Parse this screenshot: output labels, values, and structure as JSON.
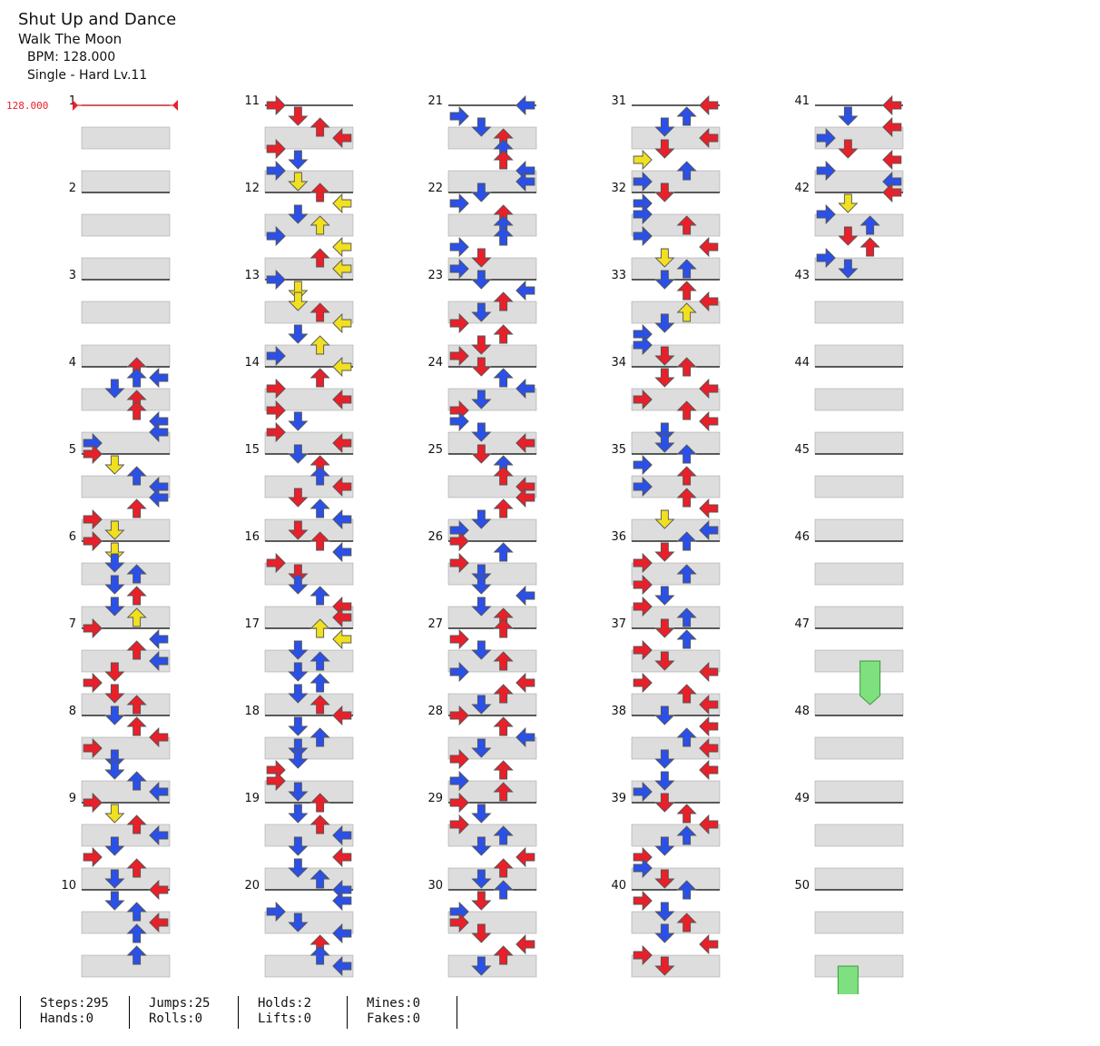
{
  "song": {
    "title": "Shut Up and Dance",
    "artist": "Walk The Moon",
    "bpm_label": "BPM: 128.000",
    "difficulty_label": "Single - Hard  Lv.11"
  },
  "bpm_marker": "128.000",
  "measures_per_column": 10,
  "total_measures": 50,
  "colors": {
    "quarter": "#e8202a",
    "eighth": "#2a50e8",
    "sixteenth": "#f0e020",
    "hold": "#7fe07f",
    "lane_bg": "#dddddd",
    "measure_line": "#000000"
  },
  "notes_by_measure": [
    [],
    [],
    [],
    [
      [
        0,
        2,
        "q"
      ],
      [
        0.125,
        2,
        "e"
      ],
      [
        0.125,
        3,
        "e"
      ],
      [
        0.25,
        1,
        "e"
      ],
      [
        0.375,
        2,
        "q"
      ],
      [
        0.5,
        2,
        "q"
      ],
      [
        0.625,
        3,
        "e"
      ],
      [
        0.75,
        3,
        "e"
      ],
      [
        0.875,
        0,
        "e"
      ]
    ],
    [
      [
        0,
        0,
        "q"
      ],
      [
        0.125,
        1,
        "s"
      ],
      [
        0.25,
        2,
        "e"
      ],
      [
        0.375,
        3,
        "e"
      ],
      [
        0.5,
        3,
        "e"
      ],
      [
        0.625,
        2,
        "q"
      ],
      [
        0.75,
        0,
        "q"
      ],
      [
        0.875,
        1,
        "s"
      ]
    ],
    [
      [
        0,
        0,
        "q"
      ],
      [
        0.125,
        1,
        "s"
      ],
      [
        0.25,
        1,
        "e"
      ],
      [
        0.375,
        2,
        "e"
      ],
      [
        0.5,
        1,
        "e"
      ],
      [
        0.625,
        2,
        "q"
      ],
      [
        0.75,
        1,
        "e"
      ],
      [
        0.875,
        2,
        "s"
      ]
    ],
    [
      [
        0,
        0,
        "q"
      ],
      [
        0.125,
        3,
        "e"
      ],
      [
        0.25,
        2,
        "q"
      ],
      [
        0.375,
        3,
        "e"
      ],
      [
        0.5,
        1,
        "q"
      ],
      [
        0.625,
        0,
        "q"
      ],
      [
        0.75,
        1,
        "q"
      ],
      [
        0.875,
        2,
        "q"
      ]
    ],
    [
      [
        0,
        1,
        "e"
      ],
      [
        0.125,
        2,
        "q"
      ],
      [
        0.25,
        3,
        "q"
      ],
      [
        0.375,
        0,
        "q"
      ],
      [
        0.5,
        1,
        "e"
      ],
      [
        0.625,
        1,
        "e"
      ],
      [
        0.75,
        2,
        "e"
      ],
      [
        0.875,
        3,
        "e"
      ]
    ],
    [
      [
        0,
        0,
        "q"
      ],
      [
        0.125,
        1,
        "s"
      ],
      [
        0.25,
        2,
        "q"
      ],
      [
        0.375,
        3,
        "e"
      ],
      [
        0.5,
        1,
        "e"
      ],
      [
        0.625,
        0,
        "q"
      ],
      [
        0.75,
        2,
        "q"
      ],
      [
        0.875,
        1,
        "e"
      ]
    ],
    [
      [
        0,
        3,
        "q"
      ],
      [
        0.125,
        1,
        "e"
      ],
      [
        0.25,
        2,
        "e"
      ],
      [
        0.375,
        3,
        "q"
      ],
      [
        0.5,
        2,
        "e"
      ],
      [
        0.75,
        2,
        "e"
      ]
    ],
    [
      [
        0,
        0,
        "q"
      ],
      [
        0.125,
        1,
        "q"
      ],
      [
        0.25,
        2,
        "q"
      ],
      [
        0.375,
        3,
        "q"
      ],
      [
        0.5,
        0,
        "q"
      ],
      [
        0.625,
        1,
        "e"
      ],
      [
        0.75,
        0,
        "e"
      ],
      [
        0.875,
        1,
        "s"
      ]
    ],
    [
      [
        0,
        2,
        "q"
      ],
      [
        0.125,
        3,
        "s"
      ],
      [
        0.25,
        1,
        "e"
      ],
      [
        0.375,
        2,
        "s"
      ],
      [
        0.5,
        0,
        "e"
      ],
      [
        0.625,
        3,
        "s"
      ],
      [
        0.75,
        2,
        "q"
      ],
      [
        0.875,
        3,
        "s"
      ]
    ],
    [
      [
        0,
        0,
        "e"
      ],
      [
        0.125,
        1,
        "s"
      ],
      [
        0.25,
        1,
        "s"
      ],
      [
        0.375,
        2,
        "q"
      ],
      [
        0.5,
        3,
        "s"
      ],
      [
        0.625,
        1,
        "e"
      ],
      [
        0.75,
        2,
        "s"
      ],
      [
        0.875,
        0,
        "e"
      ]
    ],
    [
      [
        0,
        3,
        "s"
      ],
      [
        0.125,
        2,
        "q"
      ],
      [
        0.25,
        0,
        "q"
      ],
      [
        0.375,
        3,
        "q"
      ],
      [
        0.5,
        0,
        "q"
      ],
      [
        0.625,
        1,
        "e"
      ],
      [
        0.75,
        0,
        "q"
      ],
      [
        0.875,
        3,
        "q"
      ]
    ],
    [
      [
        0,
        1,
        "e"
      ],
      [
        0.125,
        2,
        "q"
      ],
      [
        0.25,
        2,
        "e"
      ],
      [
        0.375,
        3,
        "q"
      ],
      [
        0.5,
        1,
        "q"
      ],
      [
        0.625,
        2,
        "e"
      ],
      [
        0.75,
        3,
        "e"
      ],
      [
        0.875,
        1,
        "q"
      ]
    ],
    [
      [
        0,
        2,
        "q"
      ],
      [
        0.125,
        3,
        "e"
      ],
      [
        0.25,
        0,
        "q"
      ],
      [
        0.375,
        1,
        "q"
      ],
      [
        0.5,
        1,
        "e"
      ],
      [
        0.625,
        2,
        "e"
      ],
      [
        0.75,
        3,
        "q"
      ],
      [
        0.875,
        3,
        "q"
      ]
    ],
    [
      [
        0,
        2,
        "s"
      ],
      [
        0.125,
        3,
        "s"
      ],
      [
        0.25,
        1,
        "e"
      ],
      [
        0.375,
        2,
        "e"
      ],
      [
        0.5,
        1,
        "e"
      ],
      [
        0.625,
        2,
        "e"
      ],
      [
        0.75,
        1,
        "e"
      ],
      [
        0.875,
        2,
        "q"
      ]
    ],
    [
      [
        0,
        3,
        "q"
      ],
      [
        0.125,
        1,
        "e"
      ],
      [
        0.25,
        2,
        "e"
      ],
      [
        0.375,
        1,
        "e"
      ],
      [
        0.5,
        1,
        "e"
      ],
      [
        0.625,
        0,
        "q"
      ],
      [
        0.75,
        0,
        "q"
      ],
      [
        0.875,
        1,
        "e"
      ]
    ],
    [
      [
        0,
        2,
        "q"
      ],
      [
        0.125,
        1,
        "e"
      ],
      [
        0.25,
        2,
        "q"
      ],
      [
        0.375,
        3,
        "e"
      ],
      [
        0.5,
        1,
        "e"
      ],
      [
        0.625,
        3,
        "q"
      ],
      [
        0.75,
        1,
        "e"
      ],
      [
        0.875,
        2,
        "e"
      ]
    ],
    [
      [
        0,
        3,
        "e"
      ],
      [
        0.125,
        3,
        "e"
      ],
      [
        0.25,
        0,
        "e"
      ],
      [
        0.375,
        1,
        "e"
      ],
      [
        0.5,
        3,
        "e"
      ],
      [
        0.625,
        2,
        "q"
      ],
      [
        0.75,
        2,
        "e"
      ],
      [
        0.875,
        3,
        "e"
      ]
    ],
    [
      [
        0,
        3,
        "e"
      ],
      [
        0.125,
        0,
        "e"
      ],
      [
        0.25,
        1,
        "e"
      ],
      [
        0.375,
        2,
        "q"
      ],
      [
        0.5,
        2,
        "e"
      ],
      [
        0.625,
        2,
        "q"
      ],
      [
        0.75,
        3,
        "e"
      ],
      [
        0.875,
        3,
        "e"
      ]
    ],
    [
      [
        0,
        1,
        "e"
      ],
      [
        0.125,
        0,
        "e"
      ],
      [
        0.25,
        2,
        "q"
      ],
      [
        0.375,
        2,
        "e"
      ],
      [
        0.5,
        2,
        "e"
      ],
      [
        0.625,
        0,
        "e"
      ],
      [
        0.75,
        1,
        "q"
      ],
      [
        0.875,
        0,
        "e"
      ]
    ],
    [
      [
        0,
        1,
        "e"
      ],
      [
        0.125,
        3,
        "e"
      ],
      [
        0.25,
        2,
        "q"
      ],
      [
        0.375,
        1,
        "e"
      ],
      [
        0.5,
        0,
        "q"
      ],
      [
        0.625,
        2,
        "q"
      ],
      [
        0.75,
        1,
        "q"
      ],
      [
        0.875,
        0,
        "q"
      ]
    ],
    [
      [
        0,
        1,
        "q"
      ],
      [
        0.125,
        2,
        "e"
      ],
      [
        0.25,
        3,
        "e"
      ],
      [
        0.375,
        1,
        "e"
      ],
      [
        0.5,
        0,
        "q"
      ],
      [
        0.625,
        0,
        "e"
      ],
      [
        0.75,
        1,
        "e"
      ],
      [
        0.875,
        3,
        "q"
      ]
    ],
    [
      [
        0,
        1,
        "q"
      ],
      [
        0.125,
        2,
        "e"
      ],
      [
        0.25,
        2,
        "q"
      ],
      [
        0.375,
        3,
        "q"
      ],
      [
        0.5,
        3,
        "q"
      ],
      [
        0.625,
        2,
        "q"
      ],
      [
        0.75,
        1,
        "e"
      ],
      [
        0.875,
        0,
        "e"
      ]
    ],
    [
      [
        0,
        0,
        "q"
      ],
      [
        0.125,
        2,
        "e"
      ],
      [
        0.25,
        0,
        "q"
      ],
      [
        0.375,
        1,
        "e"
      ],
      [
        0.5,
        1,
        "e"
      ],
      [
        0.625,
        3,
        "e"
      ],
      [
        0.75,
        1,
        "e"
      ],
      [
        0.875,
        2,
        "q"
      ]
    ],
    [
      [
        0,
        2,
        "q"
      ],
      [
        0.125,
        0,
        "q"
      ],
      [
        0.25,
        1,
        "e"
      ],
      [
        0.375,
        2,
        "q"
      ],
      [
        0.5,
        0,
        "e"
      ],
      [
        0.625,
        3,
        "q"
      ],
      [
        0.75,
        2,
        "q"
      ],
      [
        0.875,
        1,
        "e"
      ]
    ],
    [
      [
        0,
        0,
        "q"
      ],
      [
        0.125,
        2,
        "q"
      ],
      [
        0.25,
        3,
        "e"
      ],
      [
        0.375,
        1,
        "e"
      ],
      [
        0.5,
        0,
        "q"
      ],
      [
        0.625,
        2,
        "q"
      ],
      [
        0.75,
        0,
        "e"
      ],
      [
        0.875,
        2,
        "q"
      ]
    ],
    [
      [
        0,
        0,
        "q"
      ],
      [
        0.125,
        1,
        "e"
      ],
      [
        0.25,
        0,
        "q"
      ],
      [
        0.375,
        2,
        "e"
      ],
      [
        0.5,
        1,
        "e"
      ],
      [
        0.625,
        3,
        "q"
      ],
      [
        0.75,
        2,
        "q"
      ],
      [
        0.875,
        1,
        "e"
      ]
    ],
    [
      [
        0,
        2,
        "e"
      ],
      [
        0.125,
        1,
        "q"
      ],
      [
        0.25,
        0,
        "e"
      ],
      [
        0.375,
        0,
        "q"
      ],
      [
        0.5,
        1,
        "q"
      ],
      [
        0.625,
        3,
        "q"
      ],
      [
        0.75,
        2,
        "q"
      ],
      [
        0.875,
        1,
        "e"
      ]
    ],
    [
      [
        0,
        3,
        "q"
      ],
      [
        0.125,
        2,
        "e"
      ],
      [
        0.25,
        1,
        "e"
      ],
      [
        0.375,
        3,
        "q"
      ],
      [
        0.5,
        1,
        "q"
      ],
      [
        0.625,
        0,
        "s"
      ],
      [
        0.75,
        2,
        "e"
      ],
      [
        0.875,
        0,
        "e"
      ]
    ],
    [
      [
        0,
        1,
        "q"
      ],
      [
        0.125,
        0,
        "e"
      ],
      [
        0.25,
        0,
        "e"
      ],
      [
        0.375,
        2,
        "q"
      ],
      [
        0.5,
        0,
        "e"
      ],
      [
        0.625,
        3,
        "q"
      ],
      [
        0.75,
        1,
        "s"
      ],
      [
        0.875,
        2,
        "e"
      ]
    ],
    [
      [
        0,
        1,
        "e"
      ],
      [
        0.125,
        2,
        "q"
      ],
      [
        0.25,
        3,
        "q"
      ],
      [
        0.375,
        2,
        "s"
      ],
      [
        0.5,
        1,
        "e"
      ],
      [
        0.625,
        0,
        "e"
      ],
      [
        0.75,
        0,
        "e"
      ],
      [
        0.875,
        1,
        "q"
      ]
    ],
    [
      [
        0,
        2,
        "q"
      ],
      [
        0.125,
        1,
        "q"
      ],
      [
        0.25,
        3,
        "q"
      ],
      [
        0.375,
        0,
        "q"
      ],
      [
        0.5,
        2,
        "q"
      ],
      [
        0.625,
        3,
        "q"
      ],
      [
        0.75,
        1,
        "e"
      ],
      [
        0.875,
        1,
        "e"
      ]
    ],
    [
      [
        0,
        2,
        "e"
      ],
      [
        0.125,
        0,
        "e"
      ],
      [
        0.25,
        2,
        "q"
      ],
      [
        0.375,
        0,
        "e"
      ],
      [
        0.5,
        2,
        "q"
      ],
      [
        0.625,
        3,
        "q"
      ],
      [
        0.75,
        1,
        "s"
      ],
      [
        0.875,
        3,
        "e"
      ]
    ],
    [
      [
        0,
        2,
        "e"
      ],
      [
        0.125,
        1,
        "q"
      ],
      [
        0.25,
        0,
        "q"
      ],
      [
        0.375,
        2,
        "e"
      ],
      [
        0.5,
        0,
        "q"
      ],
      [
        0.625,
        1,
        "e"
      ],
      [
        0.75,
        0,
        "q"
      ],
      [
        0.875,
        2,
        "e"
      ]
    ],
    [
      [
        0,
        1,
        "q"
      ],
      [
        0.125,
        2,
        "e"
      ],
      [
        0.25,
        0,
        "q"
      ],
      [
        0.375,
        1,
        "q"
      ],
      [
        0.5,
        3,
        "q"
      ],
      [
        0.625,
        0,
        "q"
      ],
      [
        0.75,
        2,
        "q"
      ],
      [
        0.875,
        3,
        "q"
      ]
    ],
    [
      [
        0,
        1,
        "e"
      ],
      [
        0.125,
        3,
        "q"
      ],
      [
        0.25,
        2,
        "e"
      ],
      [
        0.375,
        3,
        "q"
      ],
      [
        0.5,
        1,
        "e"
      ],
      [
        0.625,
        3,
        "q"
      ],
      [
        0.75,
        1,
        "e"
      ],
      [
        0.875,
        0,
        "e"
      ]
    ],
    [
      [
        0,
        1,
        "q"
      ],
      [
        0.125,
        2,
        "q"
      ],
      [
        0.25,
        3,
        "q"
      ],
      [
        0.375,
        2,
        "e"
      ],
      [
        0.5,
        1,
        "e"
      ],
      [
        0.625,
        0,
        "q"
      ],
      [
        0.75,
        0,
        "e"
      ],
      [
        0.875,
        1,
        "q"
      ]
    ],
    [
      [
        0,
        2,
        "e"
      ],
      [
        0.125,
        0,
        "q"
      ],
      [
        0.25,
        1,
        "e"
      ],
      [
        0.375,
        2,
        "q"
      ],
      [
        0.5,
        1,
        "e"
      ],
      [
        0.625,
        3,
        "q"
      ],
      [
        0.75,
        0,
        "q"
      ],
      [
        0.875,
        1,
        "q"
      ]
    ],
    [
      [
        0,
        3,
        "q"
      ],
      [
        0.125,
        1,
        "e"
      ],
      [
        0.25,
        3,
        "q"
      ],
      [
        0.375,
        0,
        "e"
      ],
      [
        0.5,
        1,
        "q"
      ],
      [
        0.625,
        3,
        "q"
      ],
      [
        0.75,
        0,
        "e"
      ],
      [
        0.875,
        3,
        "e"
      ]
    ],
    [
      [
        0,
        3,
        "q"
      ],
      [
        0.125,
        1,
        "s"
      ],
      [
        0.25,
        0,
        "e"
      ],
      [
        0.375,
        2,
        "e"
      ],
      [
        0.5,
        1,
        "q"
      ],
      [
        0.625,
        2,
        "q"
      ],
      [
        0.75,
        0,
        "e"
      ],
      [
        0.875,
        1,
        "e"
      ]
    ]
  ],
  "holds": [
    {
      "measure": 47,
      "beat": 0.375,
      "lane": 2,
      "length": 0.5
    },
    {
      "measure": 50,
      "beat": 0.875,
      "lane": 1,
      "length": 1.0
    }
  ],
  "stats": {
    "steps": "Steps:295",
    "hands": "Hands:0",
    "jumps": "Jumps:25",
    "rolls": "Rolls:0",
    "holds": "Holds:2",
    "lifts": "Lifts:0",
    "mines": "Mines:0",
    "fakes": "Fakes:0"
  }
}
